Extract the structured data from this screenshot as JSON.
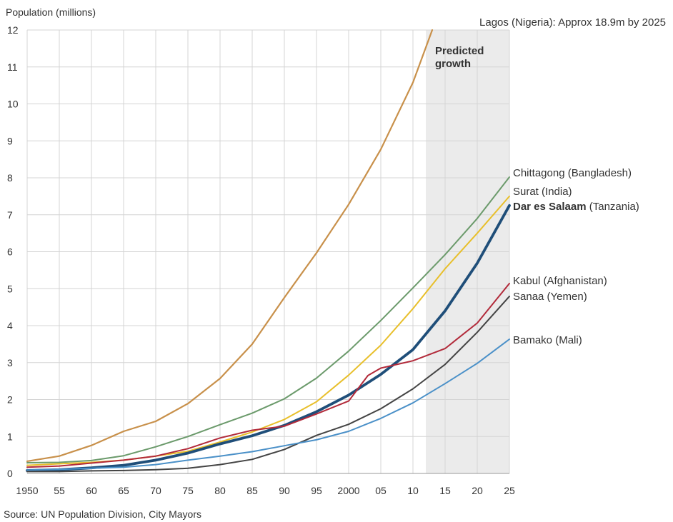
{
  "chart_data": {
    "type": "line",
    "ylabel": "Population (millions)",
    "ylim": [
      0,
      12
    ],
    "xlim": [
      1950,
      2025
    ],
    "grid": true,
    "y_ticks": [
      0,
      1,
      2,
      3,
      4,
      5,
      6,
      7,
      8,
      9,
      10,
      11,
      12
    ],
    "x_ticks": [
      1950,
      1955,
      1960,
      1965,
      1970,
      1975,
      1980,
      1985,
      1990,
      1995,
      2000,
      2005,
      2010,
      2015,
      2020,
      2025
    ],
    "x_tick_labels": [
      "1950",
      "55",
      "60",
      "65",
      "70",
      "75",
      "80",
      "85",
      "90",
      "95",
      "2000",
      "05",
      "10",
      "15",
      "20",
      "25"
    ],
    "prediction_band": {
      "label": "Predicted growth",
      "from": 2012,
      "to": 2025,
      "color": "#ebebeb"
    },
    "annotation": "Lagos (Nigeria): Approx 18.9m by 2025",
    "source": "Source: UN Population Division, City Mayors",
    "series": [
      {
        "name": "Lagos (Nigeria)",
        "color": "#c8904a",
        "width": 2.2,
        "x": [
          1950,
          1955,
          1960,
          1965,
          1970,
          1975,
          1980,
          1985,
          1990,
          1995,
          2000,
          2005,
          2010,
          2013
        ],
        "values": [
          0.33,
          0.47,
          0.76,
          1.14,
          1.41,
          1.89,
          2.57,
          3.5,
          4.76,
          5.97,
          7.28,
          8.77,
          10.58,
          12.0
        ]
      },
      {
        "name": "Chittagong",
        "country": "(Bangladesh)",
        "color": "#6b9a6b",
        "width": 2,
        "x": [
          1950,
          1955,
          1960,
          1965,
          1970,
          1975,
          1980,
          1985,
          1990,
          1995,
          2000,
          2005,
          2010,
          2015,
          2020,
          2025
        ],
        "values": [
          0.29,
          0.3,
          0.35,
          0.48,
          0.72,
          1.0,
          1.32,
          1.63,
          2.02,
          2.58,
          3.31,
          4.14,
          5.02,
          5.92,
          6.9,
          8.02
        ]
      },
      {
        "name": "Surat",
        "country": "(India)",
        "color": "#e8bf2a",
        "width": 2,
        "x": [
          1950,
          1955,
          1960,
          1965,
          1970,
          1975,
          1980,
          1985,
          1990,
          1995,
          2000,
          2005,
          2010,
          2015,
          2020,
          2025
        ],
        "values": [
          0.22,
          0.26,
          0.3,
          0.36,
          0.47,
          0.6,
          0.85,
          1.12,
          1.46,
          1.94,
          2.66,
          3.47,
          4.46,
          5.54,
          6.5,
          7.5
        ]
      },
      {
        "name": "Dar es Salaam",
        "country": "(Tanzania)",
        "color": "#1f4e79",
        "width": 3.8,
        "bold": true,
        "x": [
          1950,
          1955,
          1960,
          1965,
          1970,
          1975,
          1980,
          1985,
          1990,
          1995,
          2000,
          2005,
          2010,
          2015,
          2020,
          2025
        ],
        "values": [
          0.08,
          0.1,
          0.15,
          0.22,
          0.36,
          0.55,
          0.8,
          1.02,
          1.3,
          1.67,
          2.12,
          2.68,
          3.35,
          4.4,
          5.69,
          7.25
        ]
      },
      {
        "name": "Kabul",
        "country": "(Afghanistan)",
        "color": "#b22a3a",
        "width": 2,
        "x": [
          1950,
          1955,
          1960,
          1965,
          1970,
          1975,
          1980,
          1985,
          1990,
          1995,
          2000,
          2003,
          2005,
          2010,
          2015,
          2020,
          2025
        ],
        "values": [
          0.17,
          0.2,
          0.28,
          0.36,
          0.47,
          0.67,
          0.96,
          1.17,
          1.28,
          1.61,
          1.96,
          2.65,
          2.85,
          3.05,
          3.38,
          4.07,
          5.14
        ]
      },
      {
        "name": "Sanaa",
        "country": "(Yemen)",
        "color": "#444444",
        "width": 2,
        "x": [
          1950,
          1955,
          1960,
          1965,
          1970,
          1975,
          1980,
          1985,
          1990,
          1995,
          2000,
          2005,
          2010,
          2015,
          2020,
          2025
        ],
        "values": [
          0.05,
          0.05,
          0.07,
          0.08,
          0.1,
          0.14,
          0.24,
          0.38,
          0.65,
          1.03,
          1.33,
          1.75,
          2.29,
          2.95,
          3.82,
          4.79
        ]
      },
      {
        "name": "Bamako",
        "country": "(Mali)",
        "color": "#4a90c8",
        "width": 2,
        "x": [
          1950,
          1955,
          1960,
          1965,
          1970,
          1975,
          1980,
          1985,
          1990,
          1995,
          2000,
          2005,
          2010,
          2015,
          2020,
          2025
        ],
        "values": [
          0.09,
          0.11,
          0.14,
          0.17,
          0.24,
          0.36,
          0.47,
          0.59,
          0.75,
          0.91,
          1.14,
          1.49,
          1.91,
          2.43,
          2.98,
          3.63
        ]
      }
    ]
  }
}
